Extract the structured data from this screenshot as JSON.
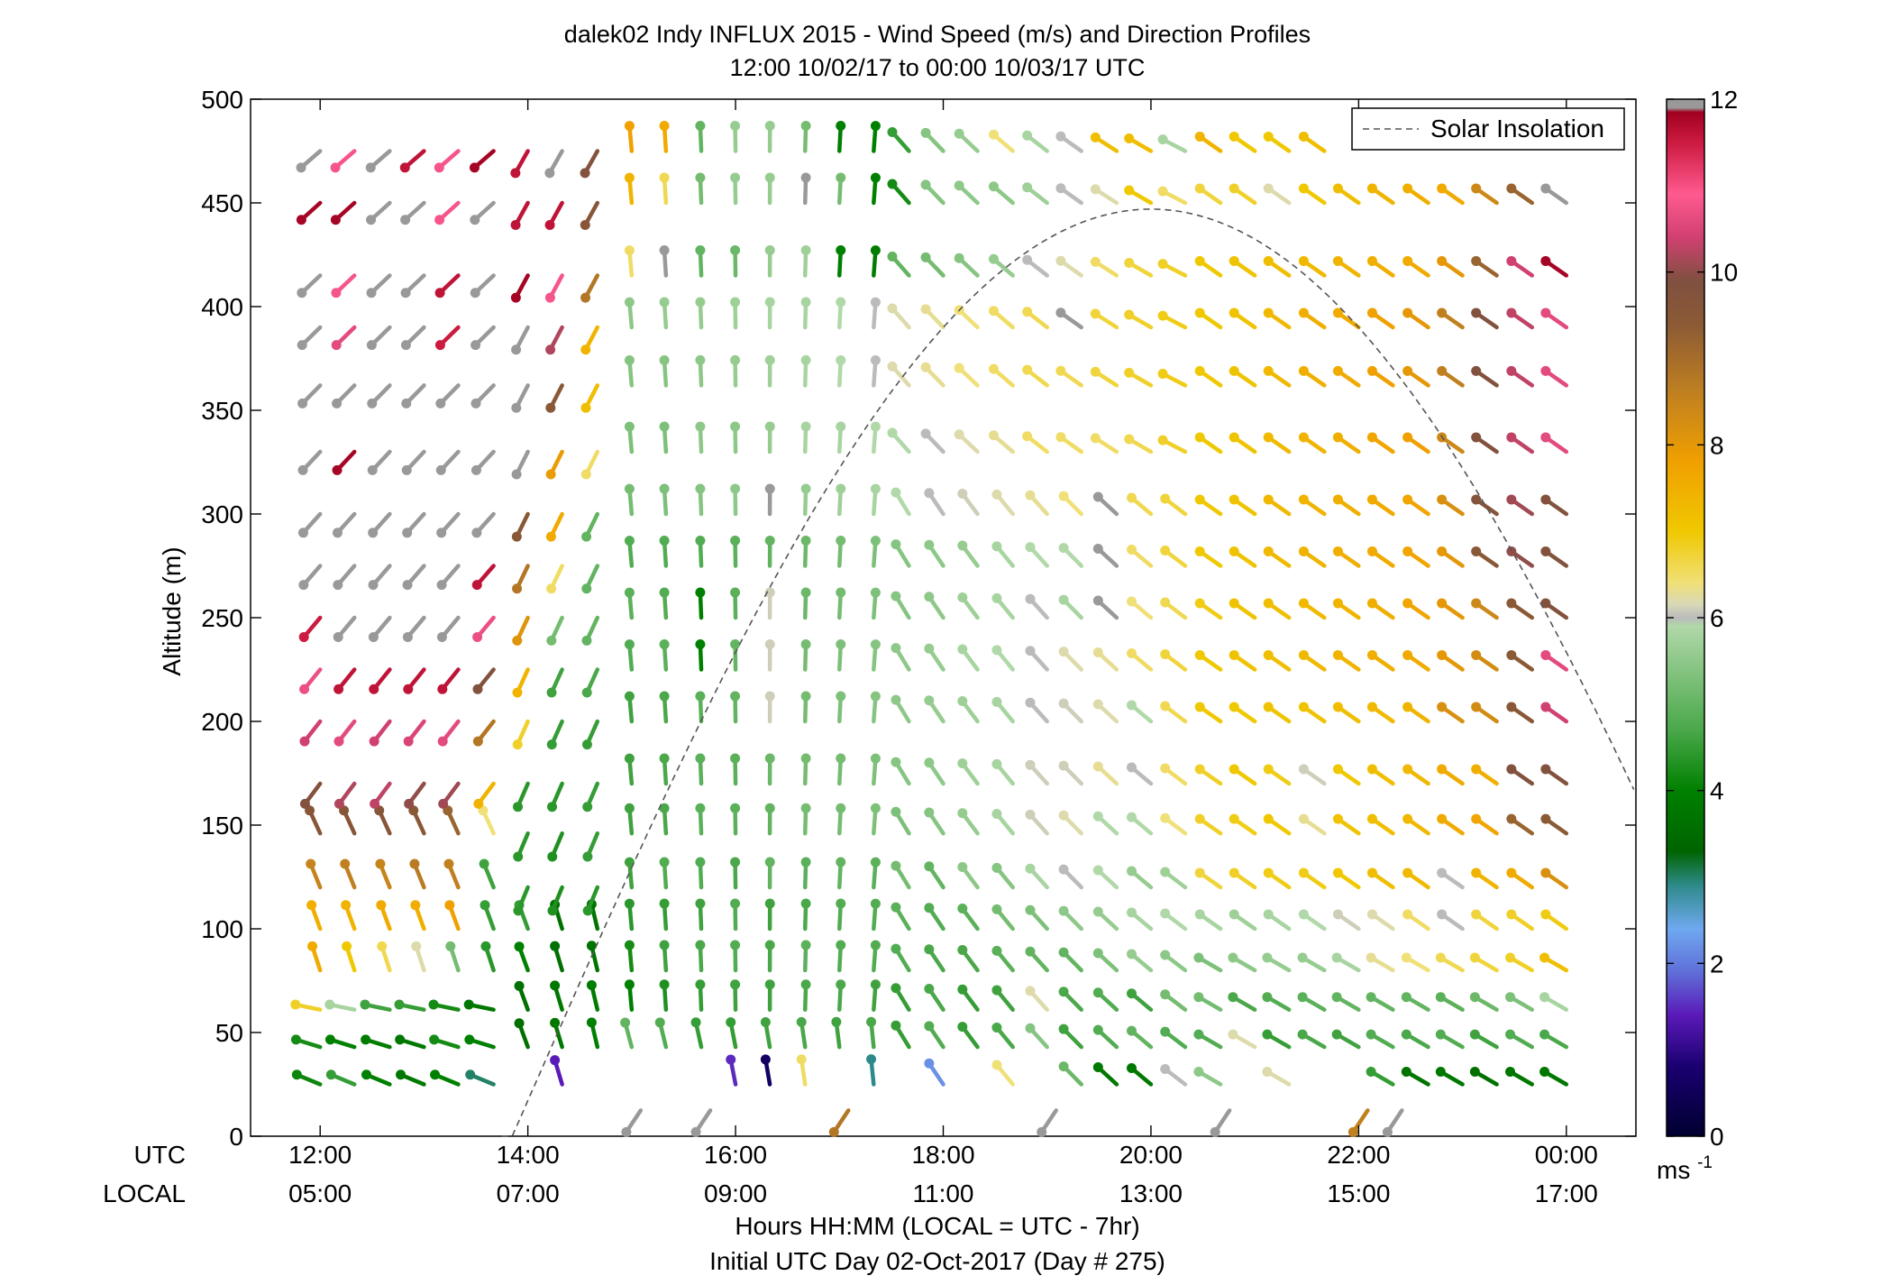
{
  "chart_data": {
    "type": "wind-barb-profile",
    "title": "dalek02 Indy INFLUX 2015 - Wind Speed (m/s) and Direction Profiles",
    "subtitle": "12:00 10/02/17 to 00:00 10/03/17  UTC",
    "ylabel": "Altitude (m)",
    "xlabel": "Hours HH:MM  (LOCAL = UTC - 7hr)",
    "xlabel2": "Initial UTC Day 02-Oct-2017 (Day # 275)",
    "row_label_utc": "UTC",
    "row_label_local": "LOCAL",
    "xlim": [
      11.33,
      24.67
    ],
    "ylim": [
      0,
      500
    ],
    "utc_ticks": [
      {
        "x": 12,
        "label": "12:00"
      },
      {
        "x": 14,
        "label": "14:00"
      },
      {
        "x": 16,
        "label": "16:00"
      },
      {
        "x": 18,
        "label": "18:00"
      },
      {
        "x": 20,
        "label": "20:00"
      },
      {
        "x": 22,
        "label": "22:00"
      },
      {
        "x": 24,
        "label": "00:00"
      }
    ],
    "local_ticks": [
      {
        "x": 12,
        "label": "05:00"
      },
      {
        "x": 14,
        "label": "07:00"
      },
      {
        "x": 16,
        "label": "09:00"
      },
      {
        "x": 18,
        "label": "11:00"
      },
      {
        "x": 20,
        "label": "13:00"
      },
      {
        "x": 22,
        "label": "15:00"
      },
      {
        "x": 24,
        "label": "17:00"
      }
    ],
    "y_ticks": [
      {
        "y": 0,
        "label": "0"
      },
      {
        "y": 50,
        "label": "50"
      },
      {
        "y": 100,
        "label": "100"
      },
      {
        "y": 150,
        "label": "150"
      },
      {
        "y": 200,
        "label": "200"
      },
      {
        "y": 250,
        "label": "250"
      },
      {
        "y": 300,
        "label": "300"
      },
      {
        "y": 350,
        "label": "350"
      },
      {
        "y": 400,
        "label": "400"
      },
      {
        "y": 450,
        "label": "450"
      },
      {
        "y": 500,
        "label": "500"
      }
    ],
    "legend": {
      "label": "Solar Insolation",
      "style": "dashed",
      "placement": "top-right"
    },
    "colorbar": {
      "range": [
        0,
        12
      ],
      "unit_label": "ms",
      "unit_exponent": "-1",
      "ticks": [
        {
          "v": 0,
          "label": "0"
        },
        {
          "v": 2,
          "label": "2"
        },
        {
          "v": 4,
          "label": "4"
        },
        {
          "v": 6,
          "label": "6"
        },
        {
          "v": 8,
          "label": "8"
        },
        {
          "v": 10,
          "label": "10"
        },
        {
          "v": 12,
          "label": "12"
        }
      ],
      "stops": [
        {
          "v": 0.0,
          "color": "#000030"
        },
        {
          "v": 0.8,
          "color": "#1a0070"
        },
        {
          "v": 1.4,
          "color": "#5a1ab8"
        },
        {
          "v": 1.9,
          "color": "#5f6fd8"
        },
        {
          "v": 2.4,
          "color": "#6fa8f0"
        },
        {
          "v": 2.9,
          "color": "#2e8a8a"
        },
        {
          "v": 3.3,
          "color": "#006400"
        },
        {
          "v": 4.0,
          "color": "#008000"
        },
        {
          "v": 4.7,
          "color": "#4aa84a"
        },
        {
          "v": 5.9,
          "color": "#b0d8a8"
        },
        {
          "v": 6.0,
          "color": "#bbbbbb"
        },
        {
          "v": 6.15,
          "color": "#d8d8b8"
        },
        {
          "v": 6.4,
          "color": "#f0e078"
        },
        {
          "v": 7.0,
          "color": "#f0c800"
        },
        {
          "v": 7.8,
          "color": "#f0a000"
        },
        {
          "v": 8.6,
          "color": "#c08020"
        },
        {
          "v": 9.4,
          "color": "#8b5a35"
        },
        {
          "v": 9.9,
          "color": "#805040"
        },
        {
          "v": 10.4,
          "color": "#d04070"
        },
        {
          "v": 10.9,
          "color": "#ff5a90"
        },
        {
          "v": 11.5,
          "color": "#cc1a40"
        },
        {
          "v": 11.85,
          "color": "#a00020"
        },
        {
          "v": 11.9,
          "color": "#999999"
        },
        {
          "v": 12.0,
          "color": "#999999"
        }
      ]
    },
    "solar_insolation": {
      "peak_time_utc": 20.0,
      "peak_altitude": 447,
      "x_start": 13.75,
      "x_end": 24.67,
      "y_end": 165
    },
    "times_utc": [
      12.0,
      12.33,
      12.67,
      13.0,
      13.33,
      13.67,
      14.0,
      14.33,
      14.67,
      15.0,
      15.33,
      15.67,
      16.0,
      16.33,
      16.67,
      17.0,
      17.33,
      17.67,
      18.0,
      18.33,
      18.67,
      19.0,
      19.33,
      19.67,
      20.0,
      20.33,
      20.67,
      21.0,
      21.33,
      21.67,
      22.0,
      22.33,
      22.67,
      23.0,
      23.33,
      23.67,
      24.0
    ],
    "altitudes": [
      25,
      43,
      61,
      80,
      100,
      120,
      146,
      170,
      200,
      225,
      250,
      275,
      300,
      330,
      362,
      390,
      415,
      450,
      475
    ],
    "wind_speed_rows": [
      [
        4.1,
        4.5,
        4.0,
        3.8,
        4.0,
        3.0,
        null,
        1.4,
        null,
        null,
        null,
        null,
        1.5,
        0.6,
        6.5,
        null,
        2.9,
        null,
        2.2,
        null,
        6.4,
        null,
        5.1,
        3.8,
        3.8,
        6.0,
        5.5,
        null,
        6.2,
        null,
        null,
        4.5,
        3.7,
        3.8,
        3.6,
        3.8,
        3.8
      ],
      [
        4.2,
        4.0,
        3.9,
        3.8,
        4.2,
        4.0,
        3.6,
        3.8,
        4.0,
        5.0,
        4.8,
        4.5,
        4.5,
        4.6,
        4.7,
        4.6,
        4.7,
        4.5,
        4.8,
        4.5,
        4.7,
        5.4,
        4.6,
        4.8,
        5.0,
        4.8,
        4.8,
        6.2,
        4.5,
        4.7,
        4.6,
        4.8,
        4.7,
        4.8,
        4.6,
        4.8,
        4.7
      ],
      [
        6.8,
        5.8,
        4.6,
        4.5,
        4.2,
        3.8,
        3.6,
        3.8,
        3.9,
        4.0,
        4.3,
        4.5,
        4.6,
        4.6,
        4.7,
        4.7,
        4.6,
        4.5,
        4.7,
        4.5,
        4.6,
        6.2,
        4.7,
        4.8,
        4.6,
        5.2,
        5.2,
        4.7,
        4.8,
        4.9,
        5.0,
        5.0,
        5.0,
        4.9,
        5.1,
        5.3,
        5.8
      ],
      [
        7.6,
        7.0,
        6.6,
        6.2,
        5.2,
        4.4,
        4.0,
        3.6,
        3.7,
        4.2,
        4.6,
        4.7,
        4.8,
        4.7,
        4.9,
        4.8,
        4.8,
        4.8,
        4.7,
        4.7,
        4.9,
        5.0,
        5.0,
        5.3,
        5.6,
        5.5,
        5.3,
        5.5,
        5.6,
        5.6,
        5.8,
        6.3,
        6.4,
        6.6,
        6.7,
        6.8,
        7.2
      ],
      [
        7.5,
        7.4,
        7.6,
        7.5,
        7.8,
        4.5,
        4.5,
        3.6,
        3.7,
        4.4,
        4.5,
        4.6,
        4.8,
        4.6,
        4.7,
        4.8,
        4.8,
        4.9,
        4.8,
        4.9,
        5.2,
        5.3,
        5.5,
        5.6,
        5.8,
        5.9,
        5.8,
        5.7,
        5.8,
        5.9,
        6.1,
        6.2,
        6.5,
        6.0,
        6.7,
        6.8,
        6.9
      ],
      [
        8.5,
        8.6,
        8.5,
        8.7,
        8.6,
        4.6,
        4.4,
        4.3,
        4.4,
        4.6,
        4.8,
        4.8,
        4.7,
        5.0,
        4.9,
        5.0,
        4.9,
        5.2,
        5.0,
        5.5,
        5.4,
        5.8,
        6.0,
        5.9,
        5.6,
        5.7,
        6.7,
        6.8,
        6.9,
        6.9,
        7.0,
        7.2,
        7.3,
        6.0,
        7.4,
        7.6,
        8.2
      ],
      [
        9.6,
        9.6,
        9.6,
        9.5,
        9.2,
        6.4,
        4.4,
        4.3,
        4.5,
        4.6,
        4.7,
        4.9,
        4.9,
        5.0,
        5.2,
        5.2,
        5.3,
        5.3,
        5.4,
        5.6,
        5.8,
        6.1,
        6.2,
        5.9,
        5.9,
        6.4,
        6.8,
        6.9,
        7.0,
        6.3,
        7.1,
        7.2,
        7.3,
        7.6,
        7.7,
        9.2,
        9.4
      ],
      [
        9.8,
        10.2,
        10.3,
        10.0,
        10.1,
        7.4,
        4.4,
        4.4,
        4.5,
        4.6,
        4.7,
        4.9,
        4.9,
        5.1,
        5.2,
        5.2,
        5.3,
        5.4,
        5.5,
        5.7,
        5.8,
        6.1,
        6.1,
        6.3,
        6.0,
        6.5,
        6.8,
        7.0,
        6.9,
        6.1,
        7.0,
        7.2,
        7.3,
        7.6,
        7.5,
        9.8,
        9.8
      ],
      [
        10.4,
        10.6,
        10.4,
        10.5,
        10.6,
        8.8,
        6.8,
        4.5,
        4.5,
        4.6,
        4.7,
        4.9,
        5.0,
        6.1,
        5.2,
        5.3,
        5.4,
        5.5,
        5.6,
        5.7,
        5.8,
        6.0,
        6.1,
        6.2,
        5.9,
        6.6,
        7.0,
        7.0,
        7.1,
        7.1,
        7.2,
        7.3,
        7.4,
        8.2,
        8.3,
        9.5,
        10.4
      ],
      [
        10.7,
        11.6,
        11.6,
        11.6,
        11.6,
        9.8,
        7.4,
        4.6,
        4.7,
        4.8,
        4.9,
        4.0,
        5.0,
        6.1,
        5.2,
        5.3,
        5.4,
        5.5,
        5.6,
        5.8,
        5.9,
        6.0,
        6.2,
        6.3,
        6.5,
        6.7,
        7.0,
        7.1,
        7.2,
        7.3,
        7.4,
        7.5,
        7.6,
        8.0,
        8.3,
        9.4,
        10.6
      ],
      [
        11.5,
        12.0,
        12.0,
        12.0,
        12.0,
        10.7,
        8.1,
        5.2,
        5.0,
        4.9,
        4.8,
        4.0,
        4.9,
        6.1,
        5.1,
        5.2,
        5.3,
        5.4,
        5.5,
        5.7,
        5.8,
        6.0,
        5.8,
        12.0,
        6.4,
        6.6,
        6.9,
        7.1,
        7.2,
        7.3,
        7.4,
        7.5,
        7.7,
        8.0,
        8.4,
        9.4,
        9.8
      ],
      [
        12.0,
        12.0,
        12.0,
        12.0,
        12.0,
        11.6,
        8.8,
        6.5,
        5.0,
        4.8,
        4.8,
        4.8,
        4.9,
        5.0,
        5.1,
        5.2,
        5.3,
        5.4,
        5.5,
        5.6,
        5.8,
        5.9,
        5.9,
        12.0,
        6.5,
        6.7,
        7.0,
        7.1,
        7.3,
        7.4,
        7.5,
        7.6,
        7.7,
        8.0,
        9.5,
        10.0,
        9.8
      ],
      [
        12.0,
        12.0,
        12.0,
        12.0,
        12.0,
        12.0,
        9.5,
        7.6,
        5.0,
        5.2,
        5.3,
        5.4,
        5.5,
        12.0,
        5.6,
        5.7,
        5.8,
        5.9,
        6.0,
        6.1,
        6.2,
        6.3,
        6.4,
        12.0,
        6.6,
        6.7,
        7.0,
        7.1,
        7.3,
        7.4,
        7.5,
        7.6,
        7.7,
        8.2,
        9.7,
        10.1,
        9.8
      ],
      [
        12.0,
        11.8,
        12.0,
        12.0,
        12.0,
        12.0,
        12.0,
        7.9,
        6.5,
        5.3,
        5.3,
        5.5,
        5.5,
        5.6,
        5.8,
        5.8,
        5.9,
        5.9,
        6.0,
        6.2,
        6.3,
        6.5,
        6.5,
        6.5,
        6.6,
        6.8,
        7.0,
        7.1,
        7.3,
        7.4,
        7.5,
        7.7,
        7.8,
        8.4,
        9.8,
        10.3,
        10.6
      ],
      [
        12.0,
        12.0,
        12.0,
        12.0,
        12.0,
        12.0,
        12.0,
        9.5,
        7.2,
        5.4,
        5.4,
        5.5,
        5.6,
        5.7,
        5.8,
        5.9,
        6.0,
        6.2,
        6.3,
        6.4,
        6.5,
        6.6,
        6.6,
        6.7,
        6.8,
        6.9,
        7.0,
        7.1,
        7.3,
        7.5,
        7.6,
        7.8,
        8.0,
        8.6,
        9.8,
        10.3,
        10.6
      ],
      [
        12.0,
        10.6,
        12.0,
        12.0,
        11.5,
        12.0,
        12.0,
        10.2,
        7.4,
        5.5,
        5.6,
        5.6,
        5.7,
        5.8,
        5.8,
        5.9,
        6.0,
        6.2,
        6.3,
        6.4,
        6.5,
        6.6,
        12.0,
        6.7,
        6.8,
        6.9,
        7.0,
        7.1,
        7.3,
        7.5,
        7.6,
        7.8,
        8.0,
        8.6,
        9.8,
        10.3,
        10.6
      ],
      [
        12.0,
        10.8,
        12.0,
        12.0,
        11.6,
        12.0,
        11.8,
        10.8,
        8.8,
        6.5,
        12.0,
        5.0,
        5.1,
        5.6,
        5.7,
        4.0,
        3.9,
        5.0,
        5.2,
        5.4,
        5.6,
        6.0,
        6.2,
        6.5,
        6.7,
        6.8,
        7.0,
        7.1,
        7.2,
        7.3,
        7.4,
        7.5,
        7.6,
        8.0,
        9.2,
        10.4,
        11.8
      ],
      [
        11.8,
        11.8,
        12.0,
        12.0,
        10.8,
        12.0,
        11.6,
        11.6,
        9.6,
        7.4,
        6.6,
        5.2,
        5.6,
        5.6,
        12.0,
        5.2,
        4.0,
        4.2,
        5.4,
        5.5,
        5.5,
        5.7,
        6.0,
        6.2,
        7.0,
        6.5,
        6.7,
        6.8,
        6.2,
        7.0,
        7.2,
        7.4,
        7.5,
        7.6,
        8.4,
        9.2,
        12.0
      ],
      [
        12.0,
        10.8,
        12.0,
        11.6,
        10.8,
        11.8,
        11.6,
        12.0,
        9.8,
        7.8,
        7.6,
        5.0,
        5.6,
        5.6,
        5.2,
        4.0,
        4.0,
        4.5,
        5.4,
        5.6,
        6.4,
        5.8,
        6.0,
        7.2,
        7.2,
        5.8,
        7.4,
        7.0,
        7.0,
        7.2,
        null,
        null,
        null,
        null,
        null,
        null,
        null
      ]
    ],
    "surface_marks": [
      {
        "t": 15.0,
        "speed": 12.0
      },
      {
        "t": 15.67,
        "speed": 12.0
      },
      {
        "t": 17.0,
        "speed": 8.8
      },
      {
        "t": 19.0,
        "speed": 12.0
      },
      {
        "t": 20.67,
        "speed": 12.0
      },
      {
        "t": 22.0,
        "speed": 8.6
      },
      {
        "t": 22.33,
        "speed": 12.0
      }
    ]
  }
}
